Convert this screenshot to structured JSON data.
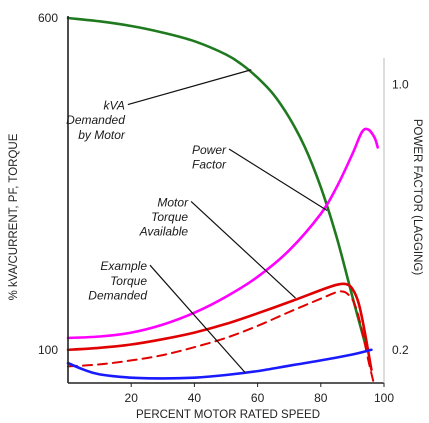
{
  "chart_data": {
    "type": "line",
    "xlabel": "PERCENT MOTOR RATED SPEED",
    "ylabel": "% kVA/CURRENT, PF, TORQUE",
    "y2label": "POWER FACTOR (LAGGING)",
    "xlim": [
      0,
      100
    ],
    "ylim": [
      50,
      600
    ],
    "grid": false,
    "x_ticks": [
      {
        "value": 20,
        "label": "20"
      },
      {
        "value": 40,
        "label": "40"
      },
      {
        "value": 60,
        "label": "60"
      },
      {
        "value": 80,
        "label": "80"
      },
      {
        "value": 100,
        "label": "100"
      }
    ],
    "y_ticks": [
      {
        "value": 600,
        "label": "600"
      },
      {
        "value": 100,
        "label": "100"
      }
    ],
    "y2_ticks": [
      {
        "value": 1.0,
        "label": "1.0"
      },
      {
        "value": 0.2,
        "label": "0.2"
      }
    ],
    "series": [
      {
        "id": "kva",
        "color": "#1f7a1f",
        "dash": false,
        "points": [
          [
            0,
            600
          ],
          [
            10,
            595
          ],
          [
            20,
            588
          ],
          [
            30,
            578
          ],
          [
            40,
            565
          ],
          [
            50,
            545
          ],
          [
            55,
            530
          ],
          [
            60,
            510
          ],
          [
            65,
            485
          ],
          [
            70,
            450
          ],
          [
            75,
            405
          ],
          [
            80,
            345
          ],
          [
            85,
            270
          ],
          [
            90,
            180
          ],
          [
            94,
            110
          ]
        ]
      },
      {
        "id": "power-factor",
        "color": "#ff00ff",
        "dash": false,
        "points": [
          [
            0,
            118
          ],
          [
            10,
            120
          ],
          [
            20,
            126
          ],
          [
            30,
            138
          ],
          [
            40,
            156
          ],
          [
            50,
            180
          ],
          [
            60,
            210
          ],
          [
            70,
            250
          ],
          [
            80,
            305
          ],
          [
            85,
            345
          ],
          [
            90,
            395
          ],
          [
            93,
            428
          ],
          [
            95,
            432
          ],
          [
            97,
            420
          ],
          [
            98,
            405
          ]
        ]
      },
      {
        "id": "motor-torque-available",
        "color": "#e00000",
        "dash": false,
        "points": [
          [
            0,
            100
          ],
          [
            10,
            103
          ],
          [
            20,
            108
          ],
          [
            30,
            116
          ],
          [
            40,
            126
          ],
          [
            50,
            139
          ],
          [
            60,
            155
          ],
          [
            70,
            172
          ],
          [
            80,
            190
          ],
          [
            85,
            198
          ],
          [
            88,
            199
          ],
          [
            90,
            192
          ],
          [
            92,
            170
          ],
          [
            94,
            125
          ],
          [
            96,
            70
          ]
        ]
      },
      {
        "id": "example-torque-demanded",
        "color": "#e00000",
        "dash": true,
        "points": [
          [
            0,
            75
          ],
          [
            10,
            78
          ],
          [
            20,
            84
          ],
          [
            30,
            92
          ],
          [
            40,
            104
          ],
          [
            50,
            118
          ],
          [
            60,
            136
          ],
          [
            70,
            157
          ],
          [
            80,
            177
          ],
          [
            86,
            188
          ],
          [
            89,
            182
          ],
          [
            91,
            165
          ],
          [
            93,
            130
          ],
          [
            95,
            85
          ],
          [
            97,
            45
          ]
        ]
      },
      {
        "id": "current-blue",
        "color": "#1a1aff",
        "dash": false,
        "points": [
          [
            0,
            80
          ],
          [
            5,
            70
          ],
          [
            10,
            63
          ],
          [
            20,
            58
          ],
          [
            30,
            57
          ],
          [
            40,
            58
          ],
          [
            50,
            62
          ],
          [
            60,
            68
          ],
          [
            70,
            76
          ],
          [
            80,
            84
          ],
          [
            90,
            93
          ],
          [
            96,
            100
          ]
        ]
      }
    ],
    "annotations": [
      {
        "text": "kVA",
        "align": "end",
        "anchor": [
          18,
          462
        ],
        "arrow_to": [
          58,
          522
        ]
      },
      {
        "text": "Demanded",
        "align": "end",
        "anchor": [
          18,
          440
        ]
      },
      {
        "text": "by Motor",
        "align": "end",
        "anchor": [
          18,
          418
        ]
      },
      {
        "text": "Power",
        "align": "end",
        "anchor": [
          50,
          395
        ],
        "arrow_to": [
          82,
          310
        ]
      },
      {
        "text": "Factor",
        "align": "end",
        "anchor": [
          50,
          373
        ]
      },
      {
        "text": "Motor",
        "align": "end",
        "anchor": [
          38,
          316
        ],
        "arrow_to": [
          72,
          178
        ]
      },
      {
        "text": "Torque",
        "align": "end",
        "anchor": [
          38,
          294
        ]
      },
      {
        "text": "Available",
        "align": "end",
        "anchor": [
          38,
          272
        ]
      },
      {
        "text": "Example",
        "align": "end",
        "anchor": [
          25,
          220
        ],
        "arrow_to": [
          56,
          66
        ]
      },
      {
        "text": "Torque",
        "align": "end",
        "anchor": [
          25,
          198
        ]
      },
      {
        "text": "Demanded",
        "align": "end",
        "anchor": [
          25,
          176
        ]
      }
    ]
  }
}
